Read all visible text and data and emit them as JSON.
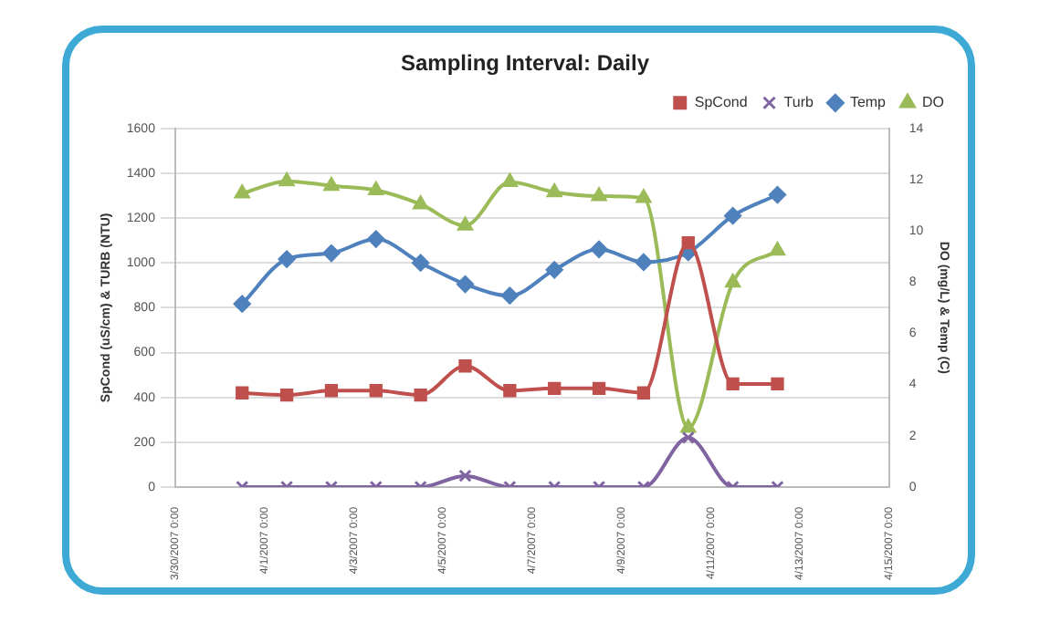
{
  "chart_data": {
    "type": "line",
    "title": "Sampling Interval: Daily",
    "ylabel": "SpCond (uS/cm) & TURB (NTU)",
    "y2label": "DO (mg/L) & Temp (C)",
    "x": [
      "2007-03-31T12:00",
      "2007-04-01T12:00",
      "2007-04-02T12:00",
      "2007-04-03T12:00",
      "2007-04-04T12:00",
      "2007-04-05T12:00",
      "2007-04-06T12:00",
      "2007-04-07T12:00",
      "2007-04-08T12:00",
      "2007-04-09T12:00",
      "2007-04-10T12:00",
      "2007-04-11T12:00",
      "2007-04-12T12:00"
    ],
    "series": [
      {
        "name": "SpCond",
        "color": "#c0504d",
        "marker": "square",
        "values": [
          420,
          410,
          430,
          430,
          410,
          540,
          430,
          440,
          440,
          420,
          1090,
          460,
          460
        ]
      },
      {
        "name": "Turb",
        "color": "#8064a2",
        "marker": "cross",
        "values": [
          0,
          0,
          0,
          0,
          0,
          50,
          0,
          0,
          0,
          0,
          220,
          0,
          0
        ]
      },
      {
        "name": "Temp",
        "color": "#4f81bd",
        "marker": "diamond",
        "axis": "y2",
        "values": [
          7.15,
          8.9,
          9.13,
          9.68,
          8.75,
          7.92,
          7.47,
          8.48,
          9.28,
          8.78,
          9.16,
          10.59,
          11.41
        ]
      },
      {
        "name": "DO",
        "color": "#9bbb59",
        "marker": "triangle",
        "axis": "y2",
        "values": [
          11.46,
          11.94,
          11.76,
          11.59,
          11.04,
          10.21,
          11.91,
          11.51,
          11.36,
          11.29,
          2.31,
          7.98,
          9.23
        ]
      }
    ],
    "xlim": [
      "2007-03-30",
      "2007-04-15"
    ],
    "xticks": [
      {
        "value": "2007-03-30",
        "label": "3/30/2007 0:00"
      },
      {
        "value": "2007-04-01",
        "label": "4/1/2007 0:00"
      },
      {
        "value": "2007-04-03",
        "label": "4/3/2007 0:00"
      },
      {
        "value": "2007-04-05",
        "label": "4/5/2007 0:00"
      },
      {
        "value": "2007-04-07",
        "label": "4/7/2007 0:00"
      },
      {
        "value": "2007-04-09",
        "label": "4/9/2007 0:00"
      },
      {
        "value": "2007-04-11",
        "label": "4/11/2007 0:00"
      },
      {
        "value": "2007-04-13",
        "label": "4/13/2007 0:00"
      },
      {
        "value": "2007-04-15",
        "label": "4/15/2007 0:00"
      }
    ],
    "ylim": [
      0,
      1600
    ],
    "yticks": [
      0,
      200,
      400,
      600,
      800,
      1000,
      1200,
      1400,
      1600
    ],
    "y2lim": [
      0,
      14
    ],
    "y2ticks": [
      0,
      2,
      4,
      6,
      8,
      10,
      12,
      14
    ],
    "grid": "y",
    "legend": "top right"
  }
}
